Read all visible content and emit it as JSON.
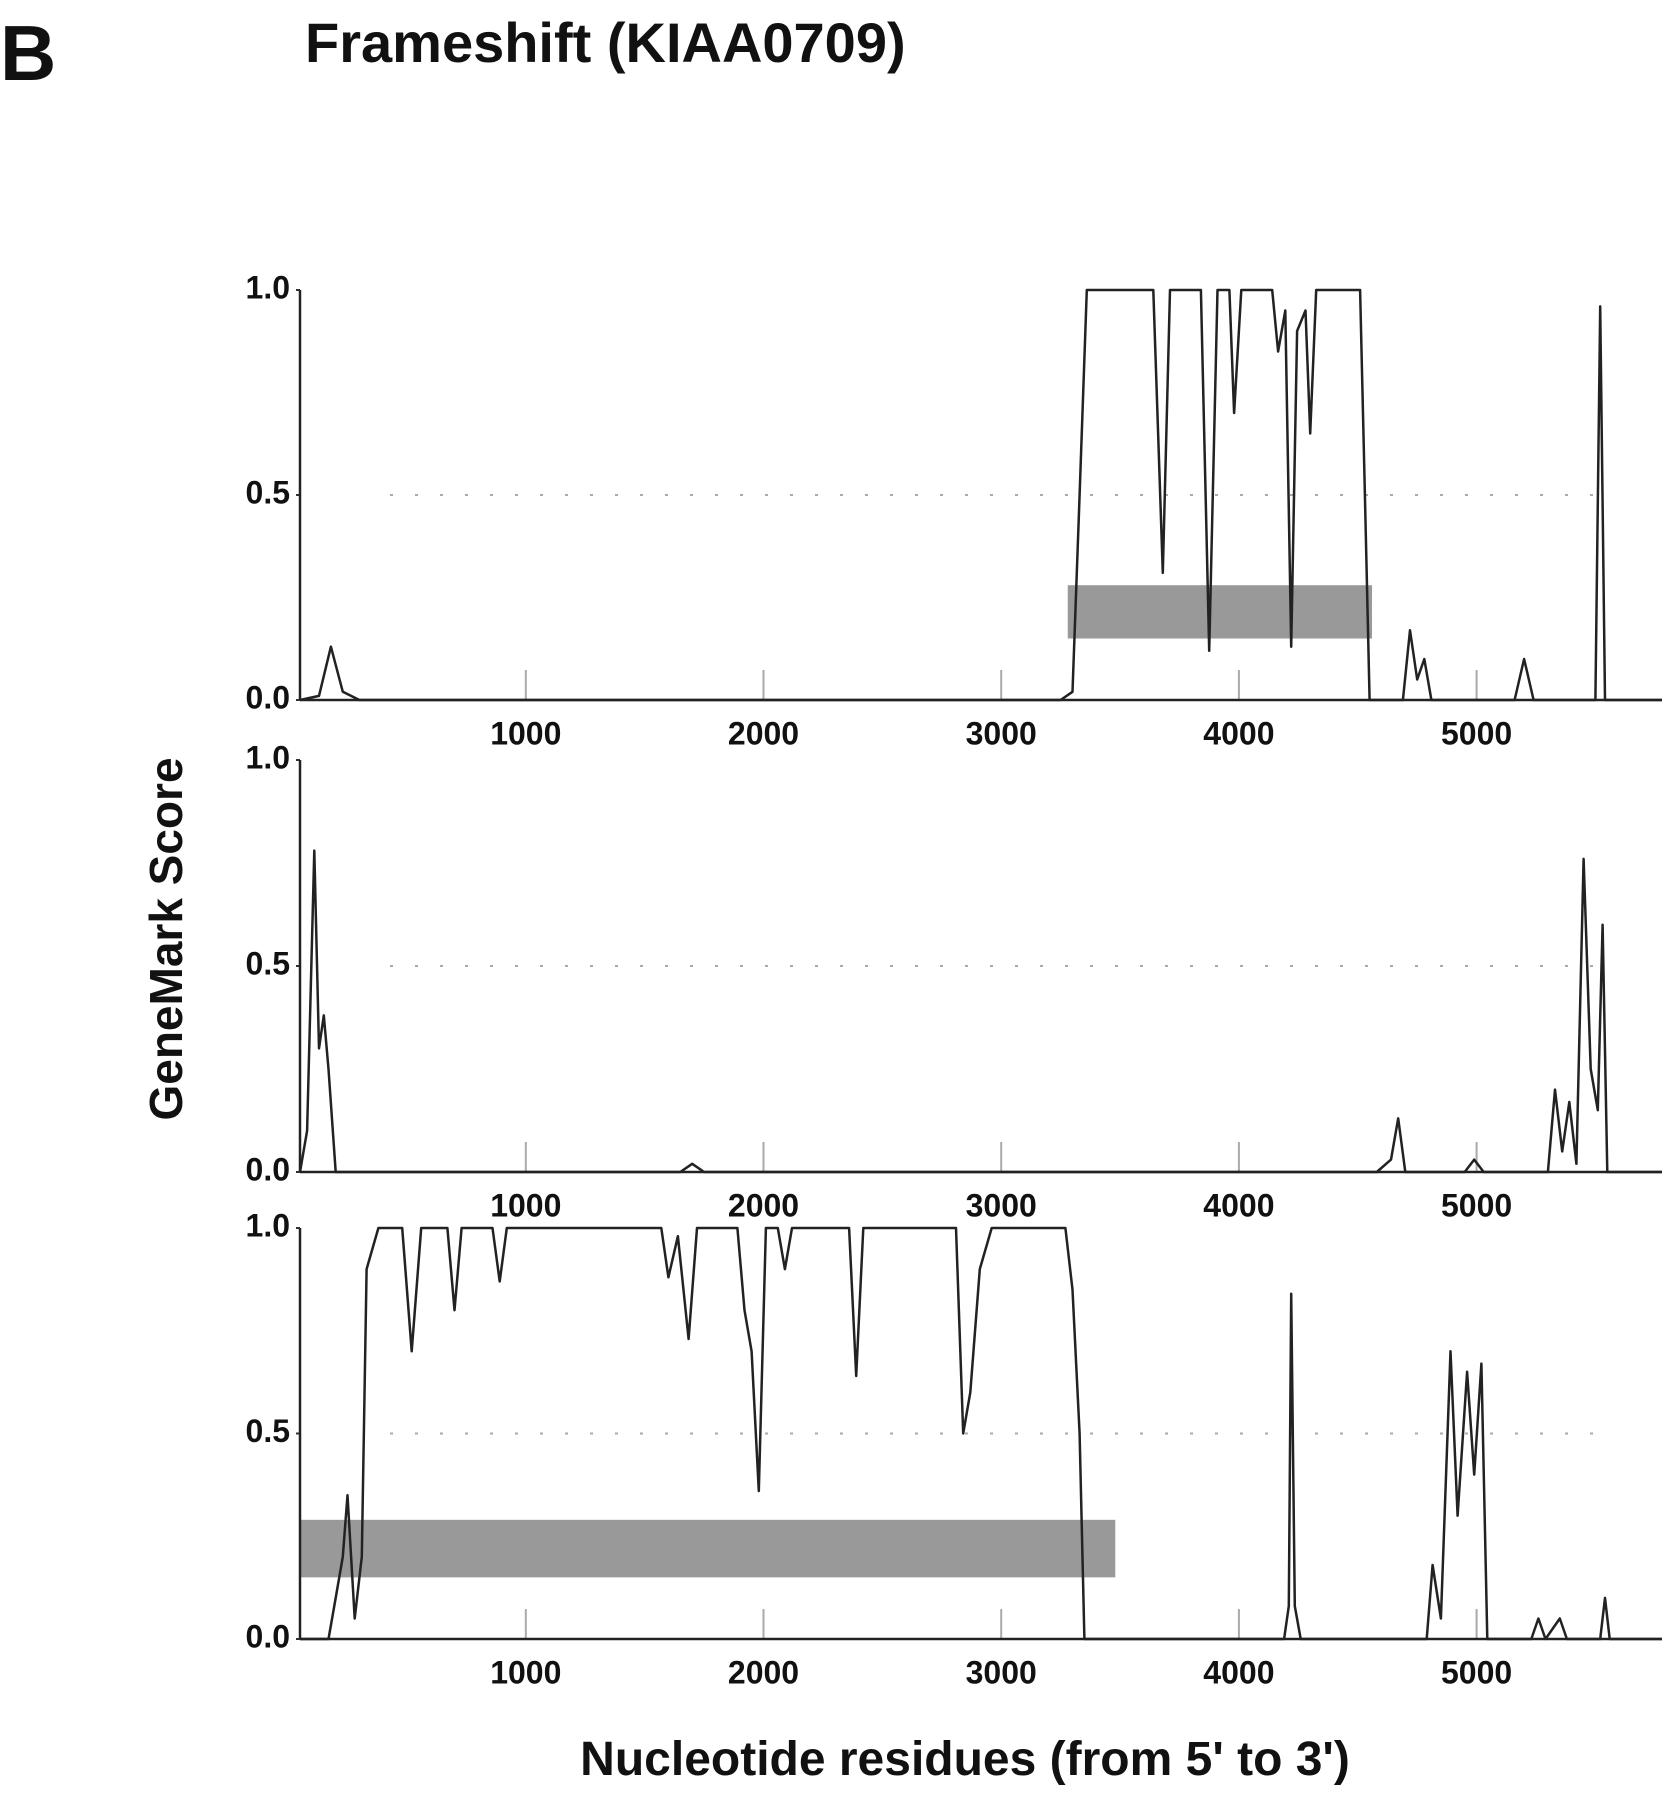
{
  "figure": {
    "panel_label": "B",
    "title": "Frameshift (KIAA0709)",
    "y_label": "GeneMark Score",
    "x_label": "Nucleotide residues (from 5' to 3')"
  },
  "chart_data": [
    {
      "type": "line",
      "xlim": [
        50,
        5780
      ],
      "ylim": [
        0,
        1
      ],
      "xticks": [
        1000,
        2000,
        3000,
        4000,
        5000
      ],
      "yticks": [
        {
          "value": 0,
          "label": "0.0"
        },
        0.5,
        {
          "value": 1,
          "label": "1.0"
        }
      ],
      "reference_line": 0.5,
      "orf": {
        "start": 3280,
        "end": 4560,
        "low": 0.15,
        "high": 0.28,
        "color": "#999999"
      },
      "series": [
        {
          "color": "#222222",
          "x": [
            50,
            130,
            180,
            230,
            300,
            3250,
            3300,
            3330,
            3360,
            3640,
            3680,
            3710,
            3840,
            3875,
            3910,
            3960,
            3980,
            4010,
            4140,
            4165,
            4195,
            4220,
            4245,
            4280,
            4300,
            4325,
            4510,
            4530,
            4550,
            4690,
            4720,
            4750,
            4780,
            4810,
            5160,
            5200,
            5240,
            5500,
            5520,
            5540,
            5780
          ],
          "values": [
            0,
            0.01,
            0.13,
            0.02,
            0,
            0,
            0.02,
            0.5,
            1.0,
            1.0,
            0.31,
            1.0,
            1.0,
            0.12,
            1.0,
            1.0,
            0.7,
            1.0,
            1.0,
            0.85,
            0.95,
            0.13,
            0.9,
            0.95,
            0.65,
            1.0,
            1.0,
            0.5,
            0,
            0,
            0.17,
            0.05,
            0.1,
            0,
            0,
            0.1,
            0,
            0,
            0.96,
            0,
            0
          ]
        }
      ]
    },
    {
      "type": "line",
      "xlim": [
        50,
        5780
      ],
      "ylim": [
        0,
        1
      ],
      "xticks": [
        1000,
        2000,
        3000,
        4000,
        5000
      ],
      "yticks": [
        {
          "value": 0,
          "label": "0.0"
        },
        0.5,
        {
          "value": 1,
          "label": "1.0"
        }
      ],
      "reference_line": 0.5,
      "series": [
        {
          "color": "#222222",
          "x": [
            50,
            80,
            110,
            130,
            150,
            170,
            200,
            1650,
            1700,
            1750,
            4580,
            4640,
            4670,
            4700,
            4950,
            4990,
            5030,
            5300,
            5330,
            5360,
            5390,
            5420,
            5450,
            5480,
            5510,
            5530,
            5550,
            5780
          ],
          "values": [
            0,
            0.1,
            0.78,
            0.3,
            0.38,
            0.25,
            0,
            0,
            0.02,
            0,
            0,
            0.03,
            0.13,
            0,
            0,
            0.03,
            0,
            0,
            0.2,
            0.05,
            0.17,
            0.02,
            0.76,
            0.25,
            0.15,
            0.6,
            0,
            0
          ]
        }
      ]
    },
    {
      "type": "line",
      "xlim": [
        50,
        5780
      ],
      "ylim": [
        0,
        1
      ],
      "xticks": [
        1000,
        2000,
        3000,
        4000,
        5000
      ],
      "yticks": [
        {
          "value": 0,
          "label": "0.0"
        },
        0.5,
        {
          "value": 1,
          "label": "1.0"
        }
      ],
      "reference_line": 0.5,
      "orf": {
        "start": 50,
        "end": 3480,
        "low": 0.15,
        "high": 0.29,
        "color": "#999999"
      },
      "series": [
        {
          "color": "#222222",
          "x": [
            50,
            170,
            200,
            230,
            250,
            280,
            310,
            330,
            380,
            480,
            520,
            560,
            670,
            700,
            730,
            860,
            890,
            920,
            1570,
            1600,
            1640,
            1685,
            1720,
            1890,
            1920,
            1950,
            1980,
            2010,
            2060,
            2090,
            2120,
            2360,
            2390,
            2420,
            2810,
            2840,
            2870,
            2910,
            2960,
            3270,
            3300,
            3330,
            3350,
            4190,
            4210,
            4220,
            4235,
            4260,
            4790,
            4815,
            4850,
            4890,
            4920,
            4960,
            4990,
            5020,
            5045,
            5230,
            5260,
            5290,
            5350,
            5380,
            5520,
            5540,
            5560,
            5780
          ],
          "values": [
            0,
            0,
            0.1,
            0.2,
            0.35,
            0.05,
            0.2,
            0.9,
            1.0,
            1.0,
            0.7,
            1.0,
            1.0,
            0.8,
            1.0,
            1.0,
            0.87,
            1.0,
            1.0,
            0.88,
            0.98,
            0.73,
            1.0,
            1.0,
            0.8,
            0.7,
            0.36,
            1.0,
            1.0,
            0.9,
            1.0,
            1.0,
            0.64,
            1.0,
            1.0,
            0.5,
            0.6,
            0.9,
            1.0,
            1.0,
            0.85,
            0.5,
            0,
            0,
            0.08,
            0.84,
            0.08,
            0,
            0,
            0.18,
            0.05,
            0.7,
            0.3,
            0.65,
            0.4,
            0.67,
            0,
            0,
            0.05,
            0,
            0.05,
            0,
            0,
            0.1,
            0,
            0
          ]
        }
      ]
    }
  ]
}
